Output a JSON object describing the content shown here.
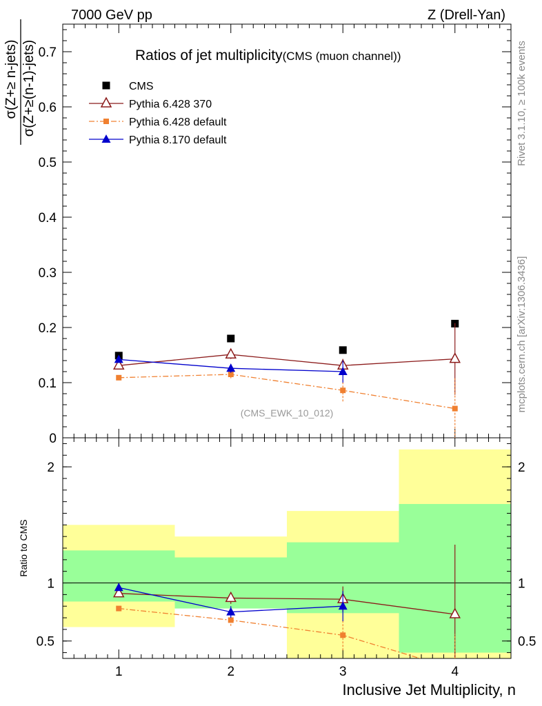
{
  "header": {
    "left": "7000 GeV pp",
    "right": "Z (Drell-Yan)"
  },
  "side_labels": {
    "rivet": "Rivet 3.1.10, ≥ 100k events",
    "mcplots": "mcplots.cern.ch [arXiv:1306.3436]"
  },
  "chart_data": [
    {
      "type": "line",
      "panel": "main",
      "title": "Ratios of jet multiplicity",
      "title_suffix": "(CMS (muon channel))",
      "watermark": "(CMS_EWK_10_012)",
      "ylabel_numerator": "σ(Z+≥ n-jets)",
      "ylabel_denominator": "σ(Z+≥(n-1)-jets)",
      "xlim": [
        0.5,
        4.5
      ],
      "ylim": [
        0,
        0.75
      ],
      "yticks": [
        0,
        0.1,
        0.2,
        0.3,
        0.4,
        0.5,
        0.6,
        0.7
      ],
      "ytick_labels": [
        "0",
        "0.1",
        "0.2",
        "0.3",
        "0.4",
        "0.5",
        "0.6",
        "0.7"
      ],
      "legend_position": "top-left",
      "series": [
        {
          "name": "CMS",
          "color": "#000000",
          "marker": "square",
          "x": [
            1,
            2,
            3,
            4
          ],
          "y": [
            0.149,
            0.18,
            0.159,
            0.207
          ]
        },
        {
          "name": "Pythia 6.428 370",
          "color": "#8b1a1a",
          "marker": "open-triangle",
          "line": "solid",
          "x": [
            1,
            2,
            3,
            4
          ],
          "y": [
            0.131,
            0.151,
            0.131,
            0.143
          ],
          "err": [
            0.004,
            0.008,
            0.012,
            0.065
          ]
        },
        {
          "name": "Pythia 6.428 default",
          "color": "#f08030",
          "marker": "square",
          "line": "dashdot",
          "x": [
            1,
            2,
            3,
            4
          ],
          "y": [
            0.109,
            0.115,
            0.086,
            0.053
          ],
          "err": [
            0.003,
            0.007,
            0.02,
            0.055
          ]
        },
        {
          "name": "Pythia 8.170 default",
          "color": "#0000cc",
          "marker": "triangle",
          "line": "solid",
          "x": [
            1,
            2,
            3
          ],
          "y": [
            0.142,
            0.126,
            0.12
          ],
          "err": [
            0.004,
            0.008,
            0.02
          ]
        }
      ]
    },
    {
      "type": "line",
      "panel": "ratio",
      "ylabel": "Ratio to CMS",
      "xlabel": "Inclusive Jet Multiplicity, n",
      "xlim": [
        0.5,
        4.5
      ],
      "ylim": [
        0.35,
        2.25
      ],
      "xticks": [
        1,
        2,
        3,
        4
      ],
      "xtick_labels": [
        "1",
        "2",
        "3",
        "4"
      ],
      "yticks": [
        0.5,
        1,
        2
      ],
      "ytick_labels": [
        "0.5",
        "1",
        "2"
      ],
      "bands": [
        {
          "x0": 0.5,
          "x1": 1.5,
          "green": [
            0.84,
            1.28
          ],
          "yellow": [
            0.62,
            1.5
          ]
        },
        {
          "x0": 1.5,
          "x1": 2.5,
          "green": [
            0.78,
            1.22
          ],
          "yellow": [
            0.9,
            1.4
          ]
        },
        {
          "x0": 2.5,
          "x1": 3.5,
          "green": [
            0.74,
            1.35
          ],
          "yellow": [
            0.35,
            1.62
          ]
        },
        {
          "x0": 3.5,
          "x1": 4.5,
          "green": [
            0.4,
            1.68
          ],
          "yellow": [
            0.35,
            2.15
          ]
        }
      ],
      "series": [
        {
          "name": "Pythia 6.428 370",
          "color": "#8b1a1a",
          "marker": "open-triangle",
          "line": "solid",
          "x": [
            1,
            2,
            3,
            4
          ],
          "y": [
            0.91,
            0.87,
            0.86,
            0.73
          ],
          "err": [
            0.02,
            0.05,
            0.11,
            0.6
          ]
        },
        {
          "name": "Pythia 6.428 default",
          "color": "#f08030",
          "marker": "square",
          "line": "dashdot",
          "x": [
            1,
            2,
            3,
            4
          ],
          "y": [
            0.78,
            0.68,
            0.55,
            0.26
          ],
          "err": [
            0.02,
            0.05,
            0.13,
            0.3
          ]
        },
        {
          "name": "Pythia 8.170 default",
          "color": "#0000cc",
          "marker": "triangle",
          "line": "solid",
          "x": [
            1,
            2,
            3
          ],
          "y": [
            0.96,
            0.75,
            0.8
          ],
          "err": [
            0.02,
            0.05,
            0.13
          ]
        }
      ]
    }
  ]
}
